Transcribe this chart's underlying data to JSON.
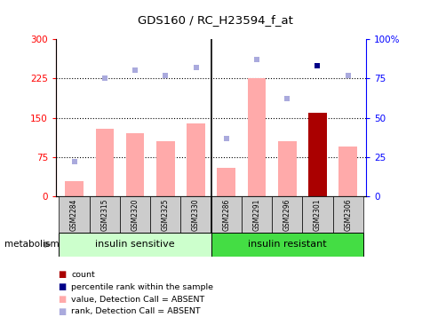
{
  "title": "GDS160 / RC_H23594_f_at",
  "samples": [
    "GSM2284",
    "GSM2315",
    "GSM2320",
    "GSM2325",
    "GSM2330",
    "GSM2286",
    "GSM2291",
    "GSM2296",
    "GSM2301",
    "GSM2306"
  ],
  "n_group1": 5,
  "group1_label": "insulin sensitive",
  "group2_label": "insulin resistant",
  "pathway_label": "metabolism",
  "bar_values": [
    30,
    130,
    120,
    105,
    140,
    55,
    225,
    105,
    160,
    95
  ],
  "bar_colors": [
    "#ffaaaa",
    "#ffaaaa",
    "#ffaaaa",
    "#ffaaaa",
    "#ffaaaa",
    "#ffaaaa",
    "#ffaaaa",
    "#ffaaaa",
    "#aa0000",
    "#ffaaaa"
  ],
  "rank_values": [
    22,
    75,
    80,
    77,
    82,
    37,
    87,
    62,
    83,
    77
  ],
  "rank_colors": [
    "#aaaadd",
    "#aaaadd",
    "#aaaadd",
    "#aaaadd",
    "#aaaadd",
    "#aaaadd",
    "#aaaadd",
    "#aaaadd",
    "#000088",
    "#aaaadd"
  ],
  "left_ylim": [
    0,
    300
  ],
  "right_ylim": [
    0,
    100
  ],
  "left_yticks": [
    0,
    75,
    150,
    225,
    300
  ],
  "right_yticks": [
    0,
    25,
    50,
    75,
    100
  ],
  "right_yticklabels": [
    "0",
    "25",
    "50",
    "75",
    "100%"
  ],
  "hlines": [
    75,
    150,
    225
  ],
  "legend_items": [
    {
      "color": "#aa0000",
      "label": "count"
    },
    {
      "color": "#000088",
      "label": "percentile rank within the sample"
    },
    {
      "color": "#ffaaaa",
      "label": "value, Detection Call = ABSENT"
    },
    {
      "color": "#aaaadd",
      "label": "rank, Detection Call = ABSENT"
    }
  ],
  "group1_color": "#ccffcc",
  "group2_color": "#44dd44",
  "label_bg": "#cccccc"
}
